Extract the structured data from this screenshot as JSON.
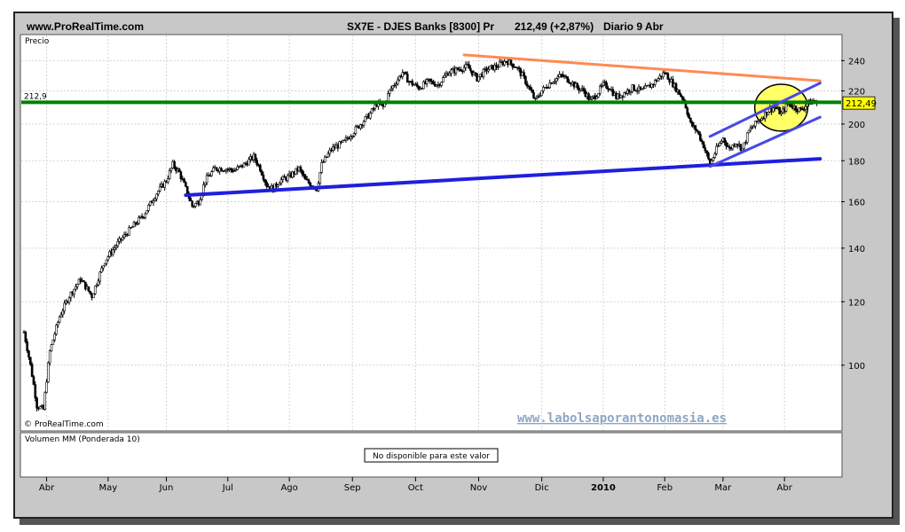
{
  "header": {
    "site": "www.ProRealTime.com",
    "instrument": "SX7E - DJES Banks [8300] Pr",
    "quote": "212,49 (+2,87%)",
    "period": "Diario  9 Abr"
  },
  "price_panel": {
    "label": "Precio",
    "copyright": "© ProRealTime.com",
    "watermark": "www.labolsaporantonomasia.es",
    "last_price_tag": "212,49",
    "level_tag": "212,9"
  },
  "volume_panel": {
    "label": "Volumen MM (Ponderada 10)",
    "message": "No disponible para este valor"
  },
  "colors": {
    "resistance": "#ff8a50",
    "support_level": "#008000",
    "trend_support": "#1f1fdd",
    "channel": "#4848e8",
    "highlight": "#ffff66",
    "price_tag": "#ffff00"
  },
  "chart_data": {
    "type": "line",
    "title": "SX7E - DJES Banks [8300] Pr",
    "scale": "log",
    "ylim": [
      83,
      250
    ],
    "y_ticks": [
      100,
      120,
      140,
      160,
      180,
      200,
      220,
      240
    ],
    "x_ticks": [
      "Abr",
      "May",
      "Jun",
      "Jul",
      "Ago",
      "Sep",
      "Oct",
      "Nov",
      "Dic",
      "2010",
      "Feb",
      "Mar",
      "Abr"
    ],
    "grid": true,
    "series": [
      {
        "values": [
          [
            0,
            110
          ],
          [
            4,
            100
          ],
          [
            8,
            89
          ],
          [
            12,
            88
          ],
          [
            16,
            104
          ],
          [
            22,
            115
          ],
          [
            28,
            122
          ],
          [
            35,
            128
          ],
          [
            42,
            122
          ],
          [
            50,
            135
          ],
          [
            58,
            142
          ],
          [
            66,
            148
          ],
          [
            74,
            154
          ],
          [
            82,
            164
          ],
          [
            88,
            170
          ],
          [
            92,
            178
          ],
          [
            96,
            174
          ],
          [
            100,
            166
          ],
          [
            104,
            158
          ],
          [
            108,
            160
          ],
          [
            112,
            170
          ],
          [
            118,
            176
          ],
          [
            124,
            176
          ],
          [
            130,
            175
          ],
          [
            136,
            178
          ],
          [
            142,
            182
          ],
          [
            146,
            176
          ],
          [
            150,
            168
          ],
          [
            154,
            166
          ],
          [
            158,
            170
          ],
          [
            164,
            172
          ],
          [
            170,
            176
          ],
          [
            174,
            170
          ],
          [
            178,
            168
          ],
          [
            181,
            166
          ],
          [
            184,
            178
          ],
          [
            190,
            186
          ],
          [
            198,
            190
          ],
          [
            206,
            198
          ],
          [
            214,
            206
          ],
          [
            218,
            212
          ],
          [
            222,
            210
          ],
          [
            226,
            220
          ],
          [
            230,
            226
          ],
          [
            234,
            232
          ],
          [
            238,
            226
          ],
          [
            244,
            222
          ],
          [
            250,
            226
          ],
          [
            256,
            224
          ],
          [
            262,
            232
          ],
          [
            268,
            234
          ],
          [
            274,
            236
          ],
          [
            280,
            228
          ],
          [
            286,
            234
          ],
          [
            292,
            236
          ],
          [
            298,
            240
          ],
          [
            304,
            236
          ],
          [
            308,
            230
          ],
          [
            312,
            222
          ],
          [
            316,
            214
          ],
          [
            320,
            220
          ],
          [
            326,
            226
          ],
          [
            332,
            230
          ],
          [
            338,
            226
          ],
          [
            342,
            222
          ],
          [
            346,
            220
          ],
          [
            350,
            214
          ],
          [
            354,
            218
          ],
          [
            358,
            224
          ],
          [
            362,
            222
          ],
          [
            366,
            216
          ],
          [
            370,
            218
          ],
          [
            376,
            222
          ],
          [
            382,
            220
          ],
          [
            388,
            224
          ],
          [
            392,
            228
          ],
          [
            396,
            232
          ],
          [
            400,
            226
          ],
          [
            404,
            220
          ],
          [
            408,
            214
          ],
          [
            412,
            200
          ],
          [
            416,
            196
          ],
          [
            420,
            188
          ],
          [
            424,
            178
          ],
          [
            428,
            186
          ],
          [
            432,
            192
          ],
          [
            436,
            186
          ],
          [
            440,
            190
          ],
          [
            444,
            186
          ],
          [
            448,
            196
          ],
          [
            452,
            200
          ],
          [
            456,
            204
          ],
          [
            460,
            208
          ],
          [
            464,
            210
          ],
          [
            468,
            206
          ],
          [
            472,
            212
          ],
          [
            476,
            210
          ],
          [
            480,
            208
          ],
          [
            484,
            212
          ],
          [
            488,
            214
          ],
          [
            490,
            212.49
          ]
        ]
      }
    ],
    "levels": [
      {
        "y": 212.9,
        "label": "212,9"
      }
    ],
    "trendlines": [
      {
        "name": "resistance",
        "from": [
          272,
          244
        ],
        "to": [
          492,
          226.5
        ]
      },
      {
        "name": "support",
        "from": [
          100,
          163
        ],
        "to": [
          492,
          181
        ]
      },
      {
        "name": "channel-top",
        "from": [
          424,
          193
        ],
        "to": [
          492,
          225
        ]
      },
      {
        "name": "channel-bottom",
        "from": [
          424,
          177
        ],
        "to": [
          492,
          204
        ]
      }
    ],
    "highlight": {
      "x": [
        456,
        480
      ],
      "y": [
        198,
        222
      ]
    },
    "last_value": 212.49
  }
}
